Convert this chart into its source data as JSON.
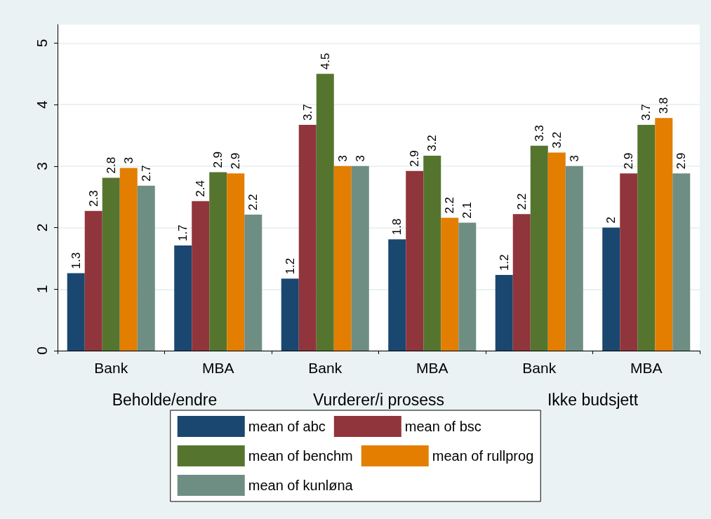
{
  "chart_data": {
    "type": "bar",
    "categories": [
      "Bank",
      "MBA",
      "Bank",
      "MBA",
      "Bank",
      "MBA"
    ],
    "annotations": [
      "Beholde/endre",
      "Vurderer/i prosess",
      "Ikke budsjett"
    ],
    "series": [
      {
        "name": "mean of abc",
        "color": "#1a476f",
        "values": [
          1.26,
          1.71,
          1.17,
          1.81,
          1.23,
          2.0
        ],
        "value_labels": [
          "1.3",
          "1.7",
          "1.2",
          "1.8",
          "1.2",
          "2"
        ]
      },
      {
        "name": "mean of bsc",
        "color": "#90353b",
        "values": [
          2.27,
          2.43,
          3.67,
          2.92,
          2.22,
          2.88
        ],
        "value_labels": [
          "2.3",
          "2.4",
          "3.7",
          "2.9",
          "2.2",
          "2.9"
        ]
      },
      {
        "name": "mean of benchm",
        "color": "#55752f",
        "values": [
          2.81,
          2.9,
          4.5,
          3.17,
          3.33,
          3.67
        ],
        "value_labels": [
          "2.8",
          "2.9",
          "4.5",
          "3.2",
          "3.3",
          "3.7"
        ]
      },
      {
        "name": "mean of rullprog",
        "color": "#e37e00",
        "values": [
          2.97,
          2.88,
          3.0,
          2.16,
          3.22,
          3.78
        ],
        "value_labels": [
          "3",
          "2.9",
          "3",
          "2.2",
          "3.2",
          "3.8"
        ]
      },
      {
        "name": "mean of kunløna",
        "color": "#6e8e84",
        "values": [
          2.68,
          2.21,
          3.0,
          2.08,
          3.0,
          2.88
        ],
        "value_labels": [
          "2.7",
          "2.2",
          "3",
          "2.1",
          "3",
          "2.9"
        ]
      }
    ],
    "ylim": [
      0,
      5.3
    ],
    "yticks": [
      0,
      1,
      2,
      3,
      4,
      5
    ],
    "grid": "y",
    "legend": "bottom"
  }
}
